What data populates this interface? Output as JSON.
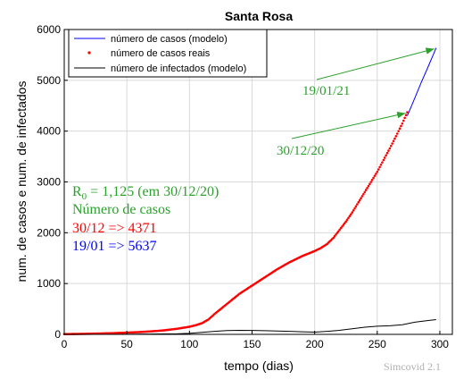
{
  "chart_data": {
    "type": "line",
    "title": "Santa Rosa",
    "xlabel": "tempo (dias)",
    "ylabel": "num. de casos e num. de infectados",
    "xlim": [
      0,
      310
    ],
    "ylim": [
      0,
      6000
    ],
    "xticks": [
      0,
      50,
      100,
      150,
      200,
      250,
      300
    ],
    "yticks": [
      0,
      1000,
      2000,
      3000,
      4000,
      5000,
      6000
    ],
    "grid": true,
    "legend_position": "top-left",
    "legend": [
      "número de casos (modelo)",
      "número de casos reais",
      "número de infectados (modelo)"
    ],
    "series": [
      {
        "name": "número de casos (modelo)",
        "style": "line",
        "color": "#0000ff",
        "x": [
          274,
          280,
          285,
          290,
          295,
          297
        ],
        "y": [
          4300,
          4650,
          4950,
          5230,
          5520,
          5637
        ]
      },
      {
        "name": "número de casos reais",
        "style": "dots",
        "color": "#ff0000",
        "x": [
          0,
          10,
          20,
          30,
          40,
          50,
          60,
          70,
          80,
          90,
          100,
          105,
          110,
          115,
          120,
          125,
          130,
          135,
          140,
          145,
          150,
          155,
          160,
          165,
          170,
          175,
          180,
          185,
          190,
          195,
          200,
          205,
          210,
          215,
          220,
          225,
          230,
          235,
          240,
          245,
          250,
          255,
          260,
          265,
          270,
          274
        ],
        "y": [
          5,
          8,
          12,
          18,
          25,
          35,
          45,
          60,
          80,
          110,
          150,
          180,
          220,
          290,
          400,
          500,
          600,
          700,
          800,
          880,
          960,
          1040,
          1120,
          1200,
          1280,
          1350,
          1420,
          1480,
          1540,
          1590,
          1640,
          1700,
          1780,
          1900,
          2060,
          2220,
          2400,
          2600,
          2800,
          3000,
          3200,
          3430,
          3660,
          3900,
          4150,
          4371
        ]
      },
      {
        "name": "número de infectados (modelo)",
        "style": "line",
        "color": "#000000",
        "x": [
          0,
          50,
          90,
          100,
          110,
          120,
          130,
          140,
          150,
          160,
          170,
          180,
          190,
          200,
          210,
          220,
          230,
          240,
          250,
          260,
          270,
          280,
          290,
          297
        ],
        "y": [
          0,
          2,
          10,
          20,
          40,
          60,
          75,
          80,
          78,
          72,
          65,
          60,
          50,
          45,
          60,
          80,
          110,
          140,
          160,
          170,
          190,
          240,
          270,
          290
        ]
      }
    ],
    "annotations": [
      {
        "text": "19/01/21",
        "color": "#2ca02c",
        "arrow_to": [
          297,
          5637
        ]
      },
      {
        "text": "30/12/20",
        "color": "#2ca02c",
        "arrow_to": [
          274,
          4371
        ]
      },
      {
        "text": "R0 = 1,125 (em 30/12/20)",
        "color": "#2ca02c"
      },
      {
        "text": "Número de casos",
        "color": "#2ca02c"
      },
      {
        "text": "30/12 => 4371",
        "color": "#ff0000"
      },
      {
        "text": "19/01 => 5637",
        "color": "#0000ff"
      }
    ],
    "r0_label": {
      "symbol": "R",
      "subscript": "0",
      "rest": " = 1,125 (em 30/12/20)"
    },
    "watermark": "Simcovid 2.1"
  }
}
